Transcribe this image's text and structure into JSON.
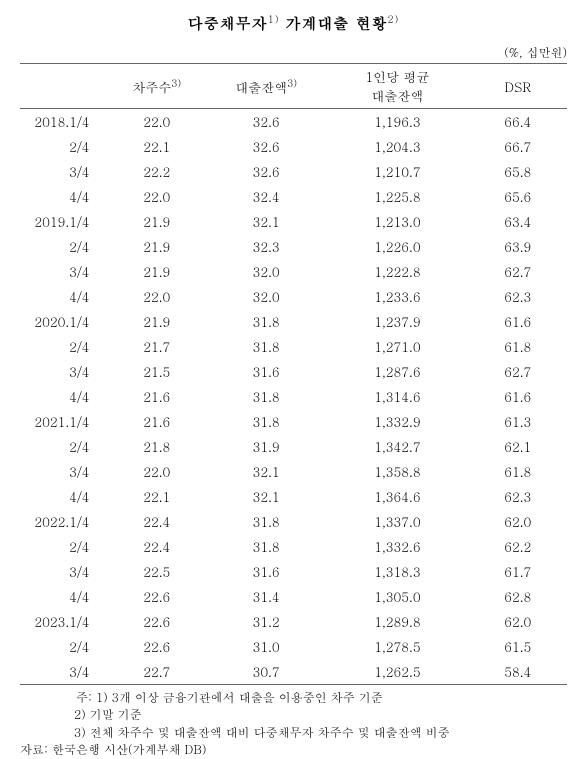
{
  "title_parts": {
    "a": "다중채무자",
    "sup1": "1)",
    "b": " 가계대출 현황",
    "sup2": "2)"
  },
  "unit": "(%, 십만원)",
  "headers": {
    "period": "",
    "borrowers": "차주수",
    "borrowers_sup": "3)",
    "balance": "대출잔액",
    "balance_sup": "3)",
    "avg": "1인당 평균\n대출잔액",
    "dsr": "DSR"
  },
  "rows": [
    {
      "period": "2018.1/4",
      "a": "22.0",
      "b": "32.6",
      "c": "1,196.3",
      "d": "66.4"
    },
    {
      "period": "2/4",
      "a": "22.1",
      "b": "32.6",
      "c": "1,204.3",
      "d": "66.7"
    },
    {
      "period": "3/4",
      "a": "22.2",
      "b": "32.6",
      "c": "1,210.7",
      "d": "65.8"
    },
    {
      "period": "4/4",
      "a": "22.0",
      "b": "32.4",
      "c": "1,225.8",
      "d": "65.6"
    },
    {
      "period": "2019.1/4",
      "a": "21.9",
      "b": "32.1",
      "c": "1,213.0",
      "d": "63.4"
    },
    {
      "period": "2/4",
      "a": "21.9",
      "b": "32.3",
      "c": "1,226.0",
      "d": "63.9"
    },
    {
      "period": "3/4",
      "a": "21.9",
      "b": "32.0",
      "c": "1,222.8",
      "d": "62.7"
    },
    {
      "period": "4/4",
      "a": "22.0",
      "b": "32.0",
      "c": "1,233.6",
      "d": "62.3"
    },
    {
      "period": "2020.1/4",
      "a": "21.9",
      "b": "31.8",
      "c": "1,237.9",
      "d": "61.6"
    },
    {
      "period": "2/4",
      "a": "21.7",
      "b": "31.8",
      "c": "1,271.0",
      "d": "61.8"
    },
    {
      "period": "3/4",
      "a": "21.5",
      "b": "31.6",
      "c": "1,287.6",
      "d": "62.7"
    },
    {
      "period": "4/4",
      "a": "21.6",
      "b": "31.8",
      "c": "1,314.6",
      "d": "61.6"
    },
    {
      "period": "2021.1/4",
      "a": "21.6",
      "b": "31.8",
      "c": "1,332.9",
      "d": "61.3"
    },
    {
      "period": "2/4",
      "a": "21.8",
      "b": "31.9",
      "c": "1,342.7",
      "d": "62.1"
    },
    {
      "period": "3/4",
      "a": "22.0",
      "b": "32.1",
      "c": "1,358.8",
      "d": "61.8"
    },
    {
      "period": "4/4",
      "a": "22.1",
      "b": "32.1",
      "c": "1,364.6",
      "d": "62.3"
    },
    {
      "period": "2022.1/4",
      "a": "22.4",
      "b": "31.8",
      "c": "1,337.0",
      "d": "62.0"
    },
    {
      "period": "2/4",
      "a": "22.4",
      "b": "31.8",
      "c": "1,332.6",
      "d": "62.2"
    },
    {
      "period": "3/4",
      "a": "22.5",
      "b": "31.6",
      "c": "1,318.3",
      "d": "61.7"
    },
    {
      "period": "4/4",
      "a": "22.6",
      "b": "31.4",
      "c": "1,305.0",
      "d": "62.8"
    },
    {
      "period": "2023.1/4",
      "a": "22.6",
      "b": "31.2",
      "c": "1,289.8",
      "d": "62.0"
    },
    {
      "period": "2/4",
      "a": "22.6",
      "b": "31.0",
      "c": "1,278.5",
      "d": "61.5"
    },
    {
      "period": "3/4",
      "a": "22.7",
      "b": "30.7",
      "c": "1,262.5",
      "d": "58.4"
    }
  ],
  "notes": {
    "prefix": "주:",
    "n1": "1) 3개 이상 금융기관에서 대출을 이용중인 차주 기준",
    "n2": "2) 기말 기준",
    "n3": "3) 전체 차주수 및 대출잔액 대비 다중채무자 차주수 및 대출잔액 비중"
  },
  "source": {
    "prefix": "자료:",
    "text": "한국은행 시산(가계부채 DB)"
  }
}
